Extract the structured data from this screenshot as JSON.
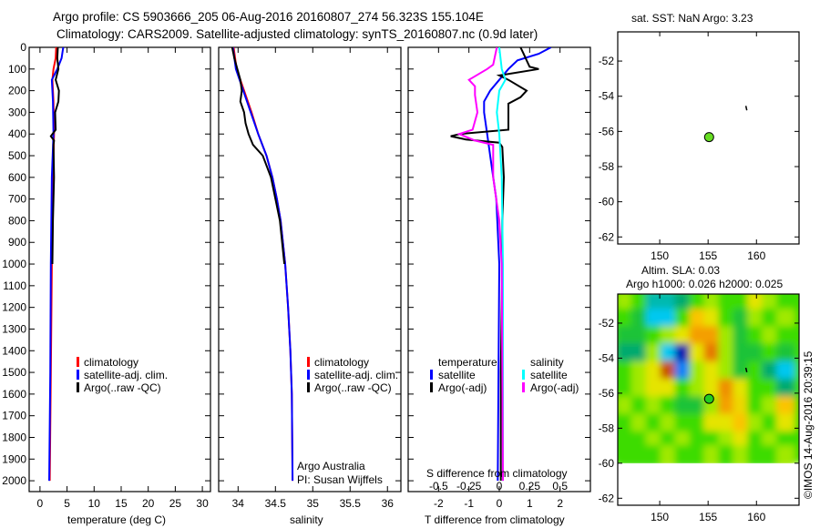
{
  "titles": {
    "line1": "Argo profile: CS 5903666_205 06-Aug-2016 20160807_274 56.323S 155.104E",
    "line2": "Climatology: CARS2009. Satellite-adjusted climatology: synTS_20160807.nc (0.9d later)",
    "sst": "sat. SST: NaN Argo: 3.23",
    "sla1": "Altim. SLA: 0.03",
    "sla2": "Argo h1000: 0.026 h2000: 0.025",
    "credit": "©IMOS 14-Aug-2016 20:39:15"
  },
  "colors": {
    "climatology": "#ff0000",
    "satellite": "#0000ff",
    "argo": "#000000",
    "sal_sat": "#00ffff",
    "sal_argo": "#ff00ff"
  },
  "chart_data": [
    {
      "type": "line",
      "name": "temperature",
      "xlabel": "temperature (deg C)",
      "ylabel": "",
      "xlim": [
        -2,
        31.5
      ],
      "ylim": [
        2050,
        0
      ],
      "xticks": [
        0,
        5,
        10,
        15,
        20,
        25,
        30
      ],
      "yticks": [
        0,
        100,
        200,
        300,
        400,
        500,
        600,
        700,
        800,
        900,
        1000,
        1100,
        1200,
        1300,
        1400,
        1500,
        1600,
        1700,
        1800,
        1900,
        2000
      ],
      "legend": [
        "climatology",
        "satellite-adj. clim.",
        "Argo(..raw -QC)"
      ],
      "series": [
        {
          "name": "climatology",
          "color": "#ff0000",
          "depth": [
            0,
            50,
            100,
            150,
            250,
            400,
            600,
            1000,
            1500,
            2000
          ],
          "values": [
            3.0,
            2.9,
            2.5,
            2.3,
            2.5,
            2.6,
            2.4,
            2.2,
            2.0,
            1.8
          ]
        },
        {
          "name": "satellite-adj. clim.",
          "color": "#0000ff",
          "depth": [
            0,
            50,
            100,
            150,
            250,
            400,
            600,
            1000,
            1500,
            2000
          ],
          "values": [
            4.3,
            4.0,
            3.2,
            2.2,
            2.4,
            2.5,
            2.2,
            2.0,
            1.9,
            1.7
          ]
        },
        {
          "name": "Argo(..raw -QC)",
          "color": "#000000",
          "depth": [
            0,
            50,
            100,
            150,
            200,
            250,
            300,
            380,
            410,
            430,
            450,
            600,
            800,
            1000
          ],
          "values": [
            3.3,
            3.2,
            3.4,
            2.9,
            3.5,
            3.4,
            2.8,
            2.9,
            2.0,
            2.6,
            2.5,
            2.6,
            2.4,
            2.3
          ]
        }
      ]
    },
    {
      "type": "line",
      "name": "salinity",
      "xlabel": "salinity",
      "xlim": [
        33.74,
        36.18
      ],
      "ylim": [
        2050,
        0
      ],
      "xticks": [
        34,
        34.5,
        35,
        35.5,
        36
      ],
      "legend": [
        "climatology",
        "satellite-adj. clim.",
        "Argo(..raw -QC)"
      ],
      "annotation": [
        "Argo Australia",
        "PI: Susan Wijffels"
      ],
      "series": [
        {
          "name": "climatology",
          "color": "#ff0000",
          "depth": [
            0,
            100,
            200,
            300,
            400,
            500,
            600,
            700,
            800,
            900,
            1000,
            1200,
            1400,
            1600,
            2000
          ],
          "values": [
            33.94,
            33.98,
            34.08,
            34.18,
            34.27,
            34.38,
            34.46,
            34.52,
            34.57,
            34.6,
            34.63,
            34.67,
            34.7,
            34.72,
            34.73
          ]
        },
        {
          "name": "satellite-adj. clim.",
          "color": "#0000ff",
          "depth": [
            0,
            100,
            200,
            300,
            400,
            500,
            600,
            700,
            800,
            900,
            1000,
            1200,
            1400,
            1600,
            2000
          ],
          "values": [
            33.93,
            33.97,
            34.07,
            34.17,
            34.27,
            34.38,
            34.46,
            34.52,
            34.57,
            34.6,
            34.63,
            34.67,
            34.7,
            34.72,
            34.73
          ]
        },
        {
          "name": "Argo(..raw -QC)",
          "color": "#000000",
          "depth": [
            0,
            50,
            100,
            150,
            200,
            250,
            300,
            350,
            400,
            450,
            500,
            600,
            700,
            800,
            1000
          ],
          "values": [
            33.92,
            33.95,
            33.99,
            34.03,
            34.05,
            34.03,
            34.08,
            34.1,
            34.14,
            34.2,
            34.33,
            34.44,
            34.5,
            34.56,
            34.62
          ]
        }
      ]
    },
    {
      "type": "line",
      "name": "difference-from-climatology",
      "xlabel": "T difference from climatology",
      "x2label": "S difference from climatology",
      "xlim": [
        -3,
        3
      ],
      "ylim": [
        2050,
        0
      ],
      "xticks": [
        -2,
        -1,
        0,
        1,
        2
      ],
      "x2ticks": [
        -0.5,
        -0.25,
        0,
        0.25,
        0.5
      ],
      "x2ticklabels": [
        "-0.5",
        "-0.25",
        "0",
        "0.25",
        "0.5"
      ],
      "legend": {
        "temperature": "temperature",
        "salinity": "salinity",
        "t_sat": "satellite",
        "t_argo": "Argo(-adj)",
        "s_sat": "satellite",
        "s_argo": "Argo(-adj)"
      },
      "series": [
        {
          "name": "temperature satellite",
          "axis": "T",
          "color": "#0000ff",
          "depth": [
            0,
            30,
            60,
            100,
            150,
            200,
            250,
            300,
            400,
            500,
            700,
            1000,
            2000
          ],
          "values": [
            1.7,
            1.3,
            0.6,
            0.3,
            0.0,
            -0.3,
            -0.5,
            -0.5,
            -0.4,
            -0.3,
            -0.1,
            0.0,
            -0.05
          ]
        },
        {
          "name": "temperature Argo(-adj)",
          "axis": "T",
          "color": "#000000",
          "depth": [
            0,
            30,
            60,
            90,
            100,
            130,
            150,
            200,
            230,
            260,
            300,
            380,
            400,
            410,
            425,
            440,
            460,
            600,
            800,
            1000,
            1500,
            2000
          ],
          "values": [
            0.7,
            0.8,
            0.9,
            1.0,
            1.3,
            0.0,
            0.3,
            0.9,
            0.7,
            0.3,
            0.3,
            0.3,
            -1.3,
            -1.6,
            -1.1,
            0.0,
            0.1,
            0.15,
            0.1,
            0.1,
            0.05,
            0.05
          ]
        },
        {
          "name": "salinity satellite",
          "axis": "S",
          "color": "#00ffff",
          "depth": [
            0,
            100,
            150,
            200,
            300,
            400,
            600,
            1000,
            2000
          ],
          "values": [
            0.0,
            0.02,
            0.05,
            0.0,
            -0.02,
            0.0,
            0.02,
            0.03,
            0.03
          ]
        },
        {
          "name": "salinity Argo(-adj)",
          "axis": "S",
          "color": "#ff00ff",
          "depth": [
            0,
            80,
            100,
            150,
            180,
            220,
            300,
            380,
            400,
            430,
            450,
            500,
            600,
            800,
            1000,
            2000
          ],
          "values": [
            -0.02,
            -0.05,
            -0.1,
            -0.25,
            -0.2,
            -0.2,
            -0.18,
            -0.22,
            -0.33,
            -0.2,
            -0.05,
            -0.05,
            -0.05,
            0.0,
            0.02,
            0.03
          ]
        }
      ]
    },
    {
      "type": "scatter",
      "name": "sst-map",
      "xlim": [
        145.66,
        164.4
      ],
      "ylim": [
        -62.4,
        -50.34
      ],
      "xticks": [
        150,
        155,
        160
      ],
      "yticks": [
        -52,
        -54,
        -56,
        -58,
        -60,
        -62
      ],
      "argo_position": {
        "lon": 155.104,
        "lat": -56.323,
        "color": "#66dd22"
      },
      "track": [
        [
          158.9,
          -54.55
        ],
        [
          159.0,
          -54.8
        ]
      ]
    },
    {
      "type": "heatmap",
      "name": "sla-map",
      "xlim": [
        145.66,
        164.4
      ],
      "ylim": [
        -62.4,
        -50.34
      ],
      "xticks": [
        150,
        155,
        160
      ],
      "yticks": [
        -52,
        -54,
        -56,
        -58,
        -60,
        -62
      ],
      "lon": [
        146.5,
        148,
        149.5,
        151,
        152.5,
        154,
        155.5,
        157,
        158.5,
        160,
        161.5,
        163
      ],
      "lat": [
        -50.8,
        -51.8,
        -52.8,
        -53.8,
        -54.8,
        -55.8,
        -56.8,
        -57.8,
        -58.8,
        -59.6
      ],
      "values": [
        [
          0.05,
          0.0,
          -0.15,
          -0.15,
          -0.1,
          0.0,
          0.05,
          0.0,
          0.0,
          0.1,
          0.05,
          0.0
        ],
        [
          0.0,
          -0.05,
          -0.2,
          -0.2,
          0.0,
          0.15,
          0.1,
          0.0,
          -0.05,
          0.05,
          0.0,
          0.05
        ],
        [
          -0.05,
          -0.05,
          0.0,
          0.05,
          0.1,
          0.2,
          0.2,
          0.05,
          -0.05,
          0.0,
          0.05,
          0.0
        ],
        [
          -0.1,
          -0.1,
          0.05,
          -0.2,
          -0.4,
          0.1,
          0.25,
          0.05,
          -0.05,
          -0.05,
          0.0,
          -0.05
        ],
        [
          0.0,
          0.05,
          0.1,
          0.3,
          -0.25,
          0.05,
          0.1,
          0.05,
          -0.05,
          0.0,
          -0.1,
          -0.2
        ],
        [
          0.0,
          0.05,
          0.1,
          0.1,
          0.0,
          0.05,
          0.1,
          0.22,
          0.1,
          0.0,
          0.0,
          -0.1
        ],
        [
          0.05,
          0.0,
          0.05,
          0.0,
          -0.05,
          -0.05,
          0.05,
          0.2,
          0.12,
          0.0,
          0.05,
          0.15
        ],
        [
          0.0,
          0.05,
          0.0,
          0.05,
          0.0,
          0.0,
          0.1,
          0.1,
          0.15,
          0.05,
          0.0,
          0.1
        ],
        [
          0.0,
          0.0,
          0.05,
          0.0,
          0.05,
          0.0,
          0.0,
          0.05,
          0.1,
          0.0,
          0.05,
          0.0
        ],
        [
          0.0,
          0.0,
          0.0,
          0.05,
          0.0,
          0.0,
          0.05,
          0.0,
          0.05,
          0.0,
          0.0,
          0.05
        ]
      ],
      "data_lat_min": -60.0,
      "argo_position": {
        "lon": 155.104,
        "lat": -56.323,
        "color": "#22cc22"
      },
      "track": [
        [
          158.9,
          -54.55
        ],
        [
          159.0,
          -54.8
        ]
      ]
    }
  ]
}
